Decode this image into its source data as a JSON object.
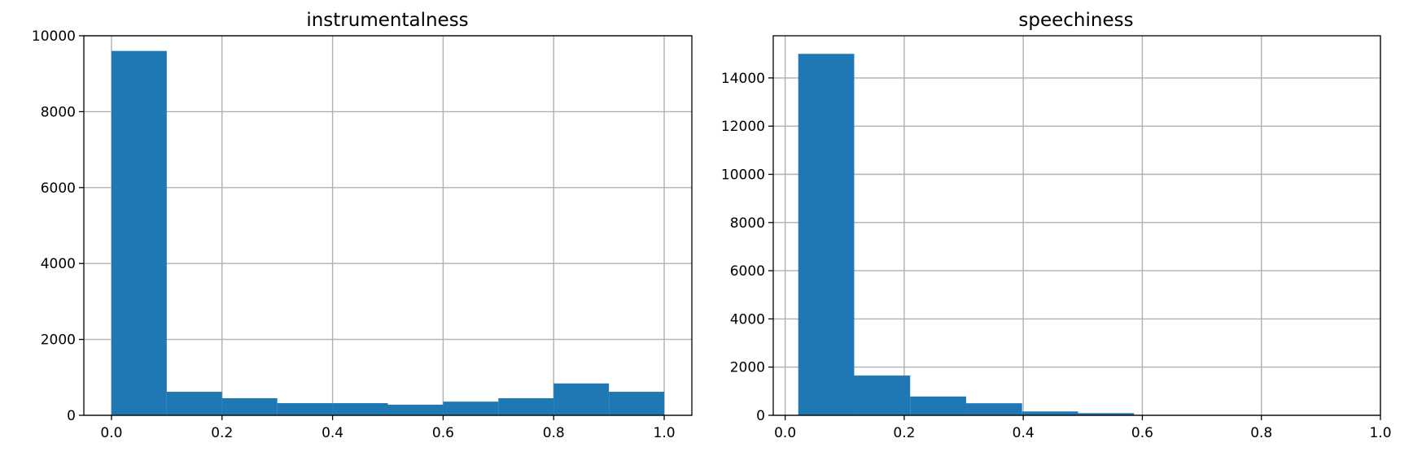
{
  "chart_data": [
    {
      "type": "bar",
      "title": "instrumentalness",
      "xlabel": "",
      "ylabel": "",
      "xlim": [
        -0.05,
        1.05
      ],
      "ylim": [
        0,
        10000
      ],
      "xticks": [
        0.0,
        0.2,
        0.4,
        0.6,
        0.8,
        1.0
      ],
      "xtick_labels": [
        "0.0",
        "0.2",
        "0.4",
        "0.6",
        "0.8",
        "1.0"
      ],
      "yticks": [
        0,
        2000,
        4000,
        6000,
        8000,
        10000
      ],
      "ytick_labels": [
        "0",
        "2000",
        "4000",
        "6000",
        "8000",
        "10000"
      ],
      "grid": true,
      "bar_color": "#1f77b4",
      "bins": [
        {
          "x0": 0.0,
          "x1": 0.1,
          "value": 9600
        },
        {
          "x0": 0.1,
          "x1": 0.2,
          "value": 620
        },
        {
          "x0": 0.2,
          "x1": 0.3,
          "value": 450
        },
        {
          "x0": 0.3,
          "x1": 0.4,
          "value": 320
        },
        {
          "x0": 0.4,
          "x1": 0.5,
          "value": 320
        },
        {
          "x0": 0.5,
          "x1": 0.6,
          "value": 280
        },
        {
          "x0": 0.6,
          "x1": 0.7,
          "value": 360
        },
        {
          "x0": 0.7,
          "x1": 0.8,
          "value": 450
        },
        {
          "x0": 0.8,
          "x1": 0.9,
          "value": 840
        },
        {
          "x0": 0.9,
          "x1": 1.0,
          "value": 620
        }
      ]
    },
    {
      "type": "bar",
      "title": "speechiness",
      "xlabel": "",
      "ylabel": "",
      "xlim": [
        -0.02,
        1.0
      ],
      "ylim": [
        0,
        15750
      ],
      "xticks": [
        0.0,
        0.2,
        0.4,
        0.6,
        0.8,
        1.0
      ],
      "xtick_labels": [
        "0.0",
        "0.2",
        "0.4",
        "0.6",
        "0.8",
        "1.0"
      ],
      "yticks": [
        0,
        2000,
        4000,
        6000,
        8000,
        10000,
        12000,
        14000
      ],
      "ytick_labels": [
        "0",
        "2000",
        "4000",
        "6000",
        "8000",
        "10000",
        "12000",
        "14000"
      ],
      "grid": true,
      "bar_color": "#1f77b4",
      "bins": [
        {
          "x0": 0.022,
          "x1": 0.116,
          "value": 15000
        },
        {
          "x0": 0.116,
          "x1": 0.21,
          "value": 1650
        },
        {
          "x0": 0.21,
          "x1": 0.304,
          "value": 780
        },
        {
          "x0": 0.304,
          "x1": 0.398,
          "value": 500
        },
        {
          "x0": 0.398,
          "x1": 0.492,
          "value": 160
        },
        {
          "x0": 0.492,
          "x1": 0.586,
          "value": 90
        },
        {
          "x0": 0.586,
          "x1": 0.68,
          "value": 10
        },
        {
          "x0": 0.68,
          "x1": 0.774,
          "value": 5
        },
        {
          "x0": 0.774,
          "x1": 0.868,
          "value": 3
        },
        {
          "x0": 0.868,
          "x1": 0.962,
          "value": 2
        }
      ]
    }
  ]
}
